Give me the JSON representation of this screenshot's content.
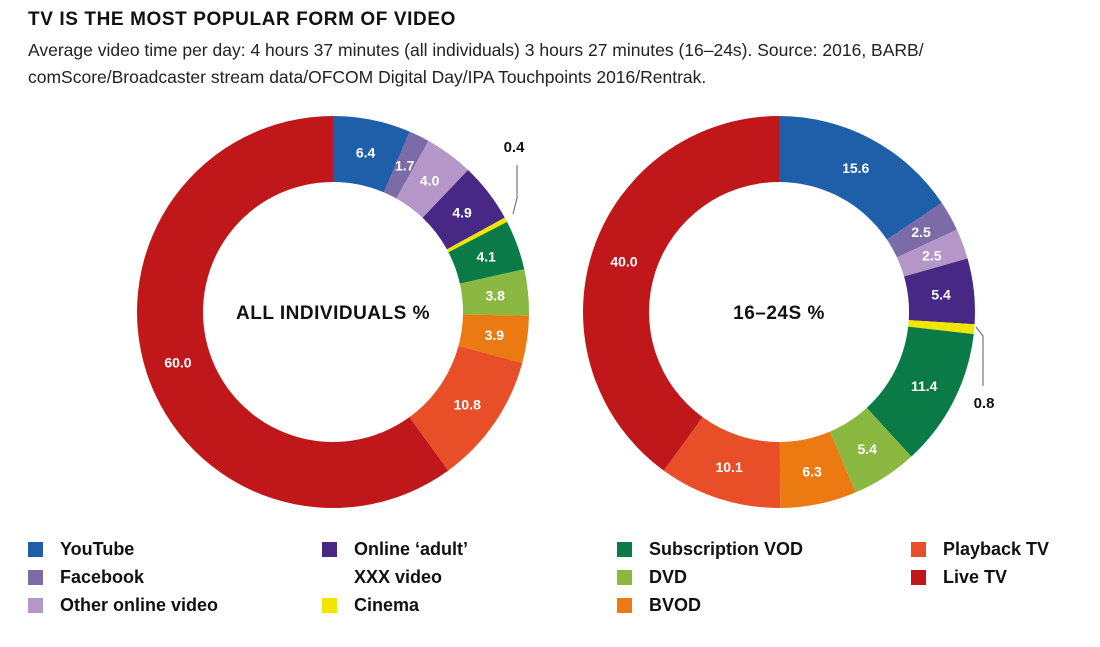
{
  "title": "TV IS THE MOST POPULAR FORM OF VIDEO",
  "subtitle": "Average video time per day: 4 hours 37 minutes (all individuals) 3 hours 27 minutes (16–24s). Source: 2016, BARB/ comScore/Broadcaster stream data/OFCOM Digital Day/IPA Touchpoints 2016/Rentrak.",
  "colors": {
    "YouTube": "#1f5faa",
    "Facebook": "#7b6ba6",
    "Other online video": "#b497c8",
    "Online adult XXX video": "#472985",
    "Cinema": "#f2e600",
    "Subscription VOD": "#0a7b46",
    "DVD": "#8ab840",
    "BVOD": "#ec7a13",
    "Playback TV": "#e84f29",
    "Live TV": "#c0171b"
  },
  "legend": [
    {
      "label": "YouTube",
      "color": "#1f5faa"
    },
    {
      "label": "Facebook",
      "color": "#7b6ba6"
    },
    {
      "label": "Other online video",
      "color": "#b497c8"
    },
    {
      "label": "Online ‘adult’",
      "color": "#472985"
    },
    {
      "label": "XXX video",
      "color": ""
    },
    {
      "label": "Cinema",
      "color": "#f2e600"
    },
    {
      "label": "Subscription VOD",
      "color": "#0a7b46"
    },
    {
      "label": "DVD",
      "color": "#8ab840"
    },
    {
      "label": "BVOD",
      "color": "#ec7a13"
    },
    {
      "label": "Playback TV",
      "color": "#e84f29"
    },
    {
      "label": "Live TV",
      "color": "#c0171b"
    }
  ],
  "chart_data": [
    {
      "type": "pie",
      "title": "ALL INDIVIDUALS %",
      "donut": true,
      "categories": [
        "YouTube",
        "Facebook",
        "Other online video",
        "Online 'adult' XXX video",
        "Cinema",
        "Subscription VOD",
        "DVD",
        "BVOD",
        "Playback TV",
        "Live TV"
      ],
      "values": [
        6.4,
        1.7,
        4.0,
        4.9,
        0.4,
        4.1,
        3.8,
        3.9,
        10.8,
        60.0
      ],
      "labels": [
        "6.4",
        "1.7",
        "4.0",
        "4.9",
        "0.4",
        "4.1",
        "3.8",
        "3.9",
        "10.8",
        "60.0"
      ],
      "start_angle": "12 o'clock, clockwise",
      "legend_position": "bottom"
    },
    {
      "type": "pie",
      "title": "16–24S %",
      "donut": true,
      "categories": [
        "YouTube",
        "Facebook",
        "Other online video",
        "Online 'adult' XXX video",
        "Cinema",
        "Subscription VOD",
        "DVD",
        "BVOD",
        "Playback TV",
        "Live TV"
      ],
      "values": [
        15.6,
        2.5,
        2.5,
        5.4,
        0.8,
        11.4,
        5.4,
        6.3,
        10.1,
        40.0
      ],
      "labels": [
        "15.6",
        "2.5",
        "2.5",
        "5.4",
        "0.8",
        "11.4",
        "5.4",
        "6.3",
        "10.1",
        "40.0"
      ],
      "start_angle": "12 o'clock, clockwise",
      "legend_position": "bottom"
    }
  ]
}
